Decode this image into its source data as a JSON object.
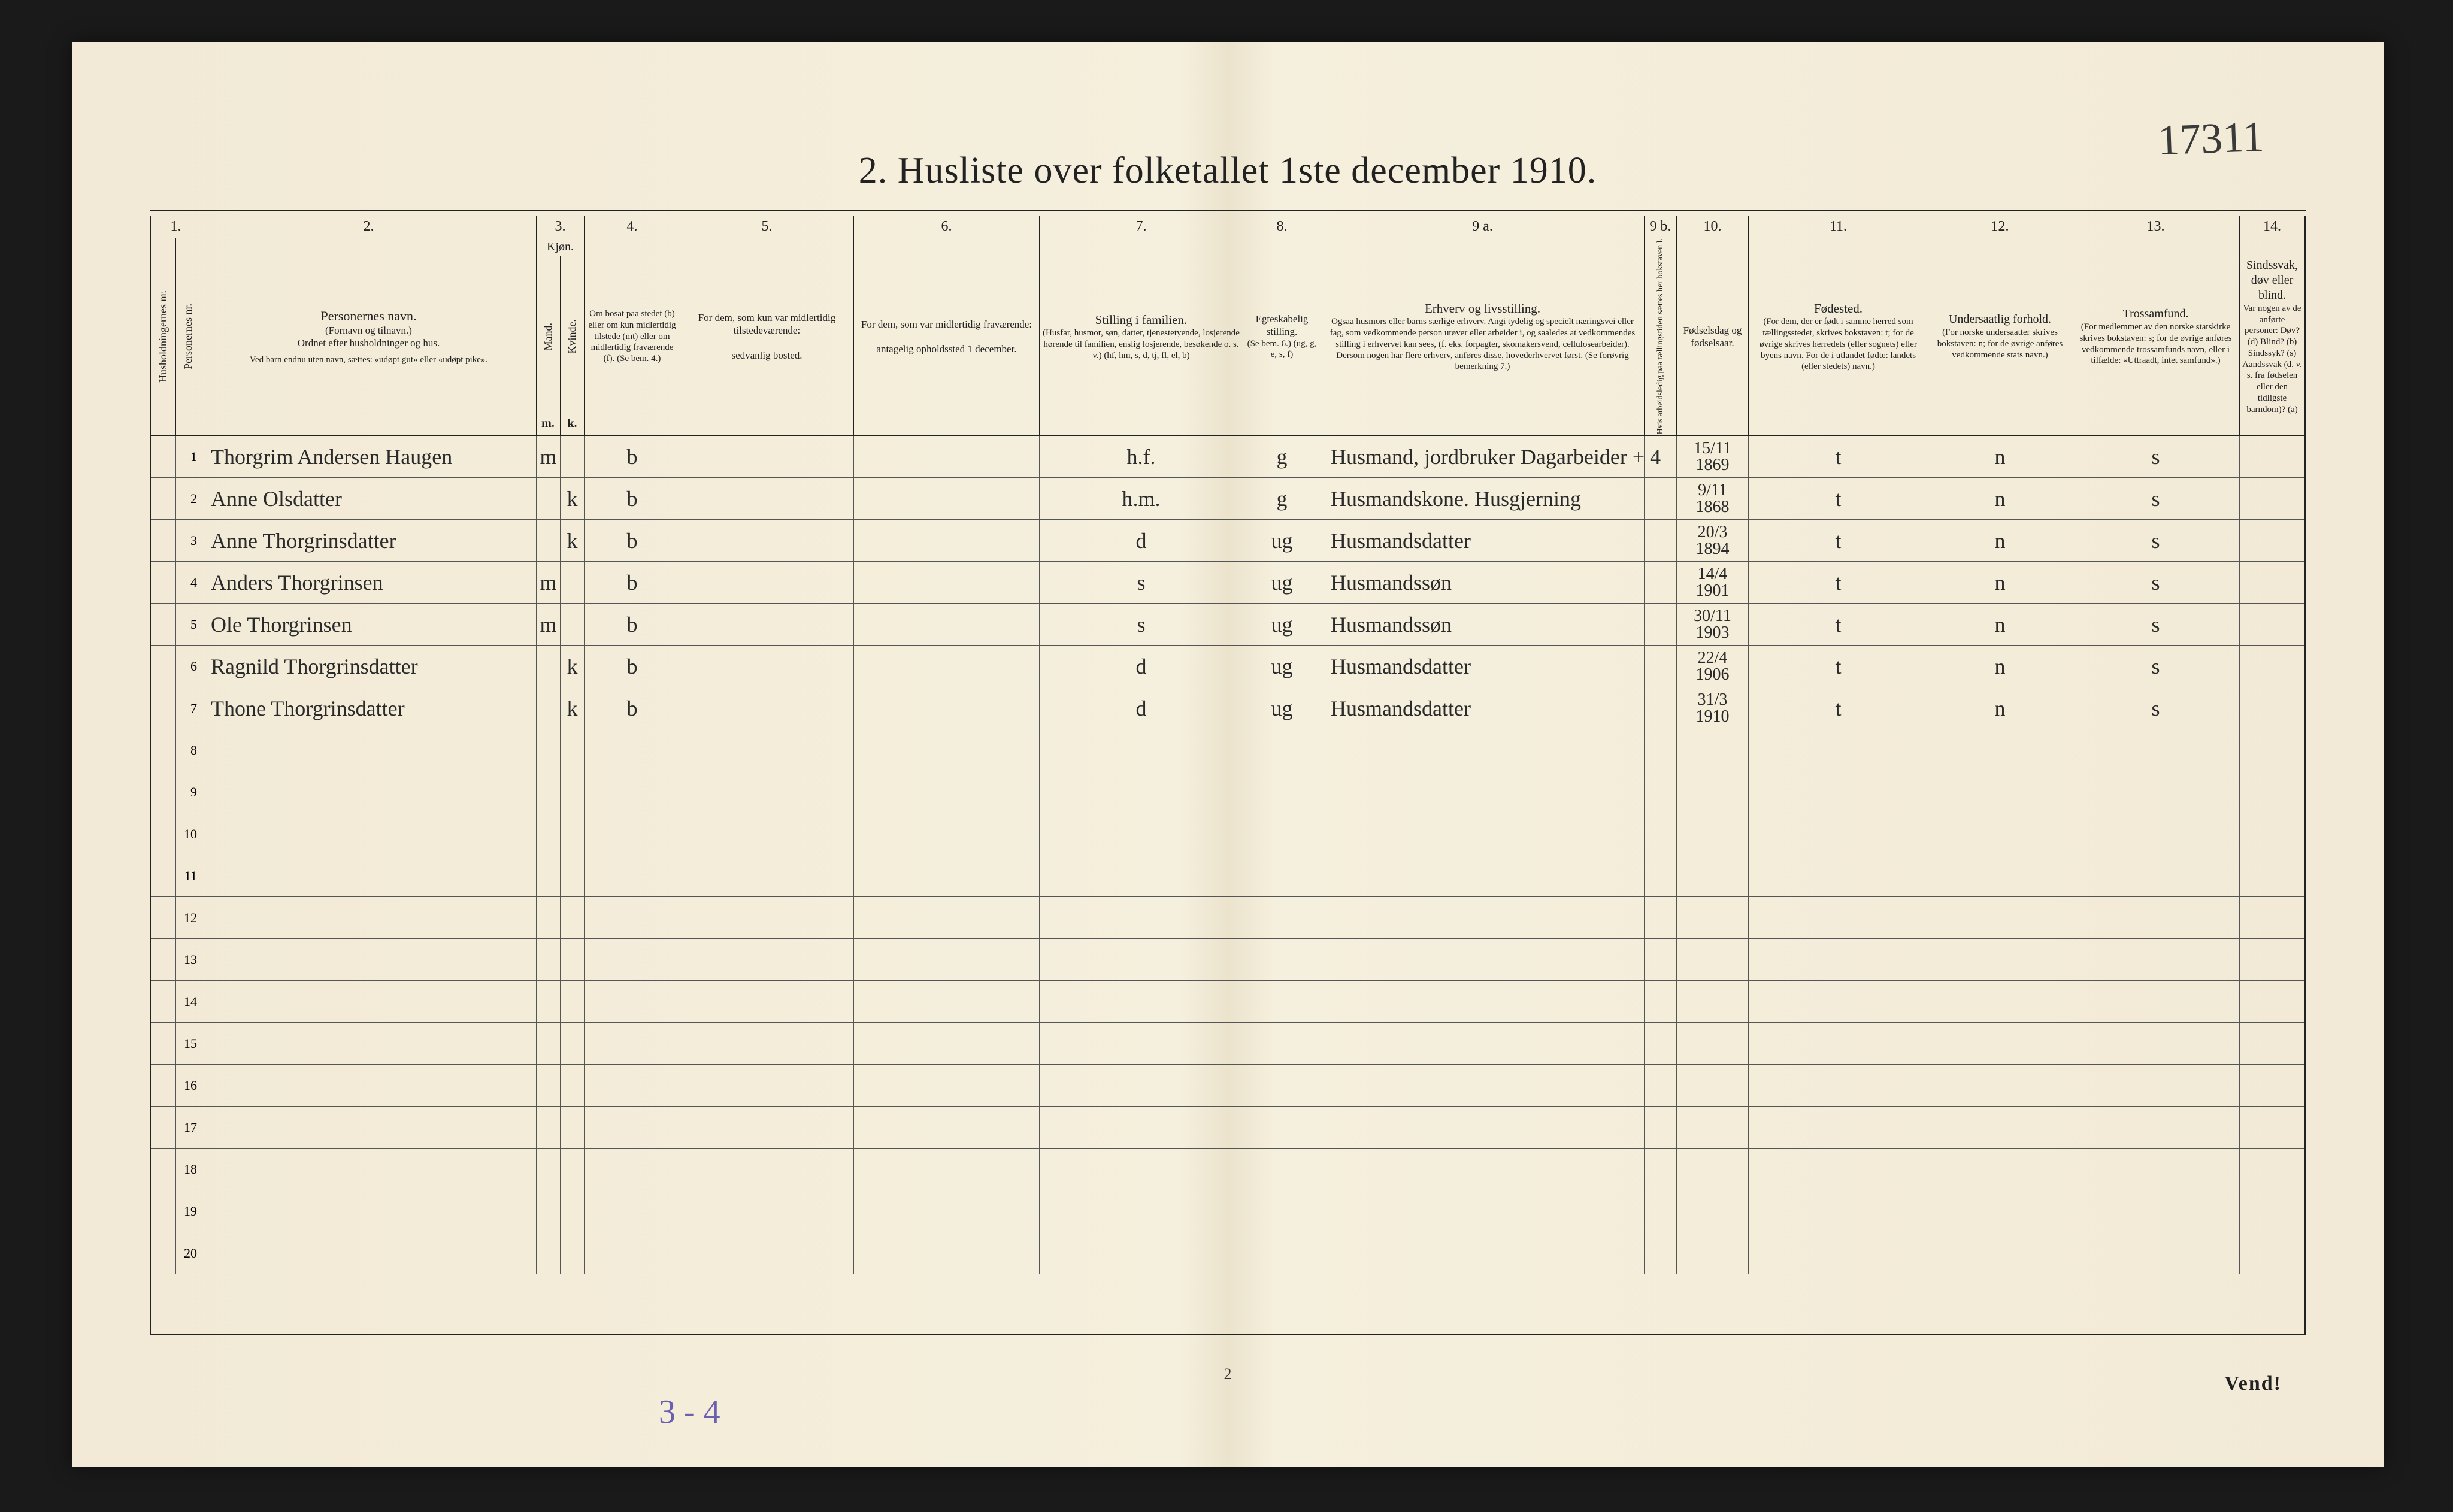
{
  "document": {
    "handwritten_id": "17311",
    "title": "2.  Husliste over folketallet 1ste december 1910.",
    "page_number_bottom": "2",
    "vend_text": "Vend!",
    "bottom_pencil": "3 - 4"
  },
  "col_numbers": [
    "1.",
    "2.",
    "3.",
    "4.",
    "5.",
    "6.",
    "7.",
    "8.",
    "9 a.",
    "9 b.",
    "10.",
    "11.",
    "12.",
    "13.",
    "14."
  ],
  "headers": {
    "c1": "Husholdningernes nr.",
    "c1b": "Personernes nr.",
    "c2_title": "Personernes navn.",
    "c2_sub1": "(Fornavn og tilnavn.)",
    "c2_sub2": "Ordnet efter husholdninger og hus.",
    "c2_sub3": "Ved barn endnu uten navn, sættes: «udøpt gut» eller «udøpt pike».",
    "c3_title": "Kjøn.",
    "c3_m": "m.",
    "c3_k": "k.",
    "c3_mand": "Mand.",
    "c3_kvinde": "Kvinde.",
    "c4": "Om bosat paa stedet (b) eller om kun midlertidig tilstede (mt) eller om midlertidig fraværende (f). (Se bem. 4.)",
    "c5": "For dem, som kun var midlertidig tilstedeværende:",
    "c5b": "sedvanlig bosted.",
    "c6": "For dem, som var midlertidig fraværende:",
    "c6b": "antagelig opholdssted 1 december.",
    "c7": "Stilling i familien.",
    "c7b": "(Husfar, husmor, søn, datter, tjenestetyende, losjerende hørende til familien, enslig losjerende, besøkende o. s. v.) (hf, hm, s, d, tj, fl, el, b)",
    "c8": "Egteskabelig stilling.",
    "c8b": "(Se bem. 6.) (ug, g, e, s, f)",
    "c9a": "Erhverv og livsstilling.",
    "c9a_b": "Ogsaa husmors eller barns særlige erhverv. Angi tydelig og specielt næringsvei eller fag, som vedkommende person utøver eller arbeider i, og saaledes at vedkommendes stilling i erhvervet kan sees, (f. eks. forpagter, skomakersvend, cellulosearbeider). Dersom nogen har flere erhverv, anføres disse, hovederhvervet først. (Se forøvrig bemerkning 7.)",
    "c9b": "Hvis arbeidsledig paa tællingstiden sættes her bokstaven l.",
    "c10": "Fødselsdag og fødselsaar.",
    "c11": "Fødested.",
    "c11b": "(For dem, der er født i samme herred som tællingsstedet, skrives bokstaven: t; for de øvrige skrives herredets (eller sognets) eller byens navn. For de i utlandet fødte: landets (eller stedets) navn.)",
    "c12": "Undersaatlig forhold.",
    "c12b": "(For norske undersaatter skrives bokstaven: n; for de øvrige anføres vedkommende stats navn.)",
    "c13": "Trossamfund.",
    "c13b": "(For medlemmer av den norske statskirke skrives bokstaven: s; for de øvrige anføres vedkommende trossamfunds navn, eller i tilfælde: «Uttraadt, intet samfund».)",
    "c14": "Sindssvak, døv eller blind.",
    "c14b": "Var nogen av de anførte personer: Døv? (d) Blind? (b) Sindssyk? (s) Aandssvak (d. v. s. fra fødselen eller den tidligste barndom)? (a)"
  },
  "rows": [
    {
      "pn": "1",
      "name": "Thorgrim Andersen Haugen",
      "km": "m",
      "kk": "",
      "om": "b",
      "stl": "h.f.",
      "egt": "g",
      "erv": "Husmand, jordbruker Dagarbeider    + 4",
      "fod": "15/11 1869",
      "fst": "t",
      "und": "n",
      "tro": "s"
    },
    {
      "pn": "2",
      "name": "Anne Olsdatter",
      "km": "",
      "kk": "k",
      "om": "b",
      "stl": "h.m.",
      "egt": "g",
      "erv": "Husmandskone. Husgjerning",
      "fod": "9/11 1868",
      "fst": "t",
      "und": "n",
      "tro": "s"
    },
    {
      "pn": "3",
      "name": "Anne Thorgrinsdatter",
      "km": "",
      "kk": "k",
      "om": "b",
      "stl": "d",
      "egt": "ug",
      "erv": "Husmandsdatter",
      "fod": "20/3 1894",
      "fst": "t",
      "und": "n",
      "tro": "s"
    },
    {
      "pn": "4",
      "name": "Anders Thorgrinsen",
      "km": "m",
      "kk": "",
      "om": "b",
      "stl": "s",
      "egt": "ug",
      "erv": "Husmandssøn",
      "fod": "14/4 1901",
      "fst": "t",
      "und": "n",
      "tro": "s"
    },
    {
      "pn": "5",
      "name": "Ole Thorgrinsen",
      "km": "m",
      "kk": "",
      "om": "b",
      "stl": "s",
      "egt": "ug",
      "erv": "Husmandssøn",
      "fod": "30/11 1903",
      "fst": "t",
      "und": "n",
      "tro": "s"
    },
    {
      "pn": "6",
      "name": "Ragnild Thorgrinsdatter",
      "km": "",
      "kk": "k",
      "om": "b",
      "stl": "d",
      "egt": "ug",
      "erv": "Husmandsdatter",
      "fod": "22/4 1906",
      "fst": "t",
      "und": "n",
      "tro": "s"
    },
    {
      "pn": "7",
      "name": "Thone Thorgrinsdatter",
      "km": "",
      "kk": "k",
      "om": "b",
      "stl": "d",
      "egt": "ug",
      "erv": "Husmandsdatter",
      "fod": "31/3 1910",
      "fst": "t",
      "und": "n",
      "tro": "s"
    },
    {
      "pn": "8"
    },
    {
      "pn": "9"
    },
    {
      "pn": "10"
    },
    {
      "pn": "11"
    },
    {
      "pn": "12"
    },
    {
      "pn": "13"
    },
    {
      "pn": "14"
    },
    {
      "pn": "15"
    },
    {
      "pn": "16"
    },
    {
      "pn": "17"
    },
    {
      "pn": "18"
    },
    {
      "pn": "19"
    },
    {
      "pn": "20"
    }
  ]
}
